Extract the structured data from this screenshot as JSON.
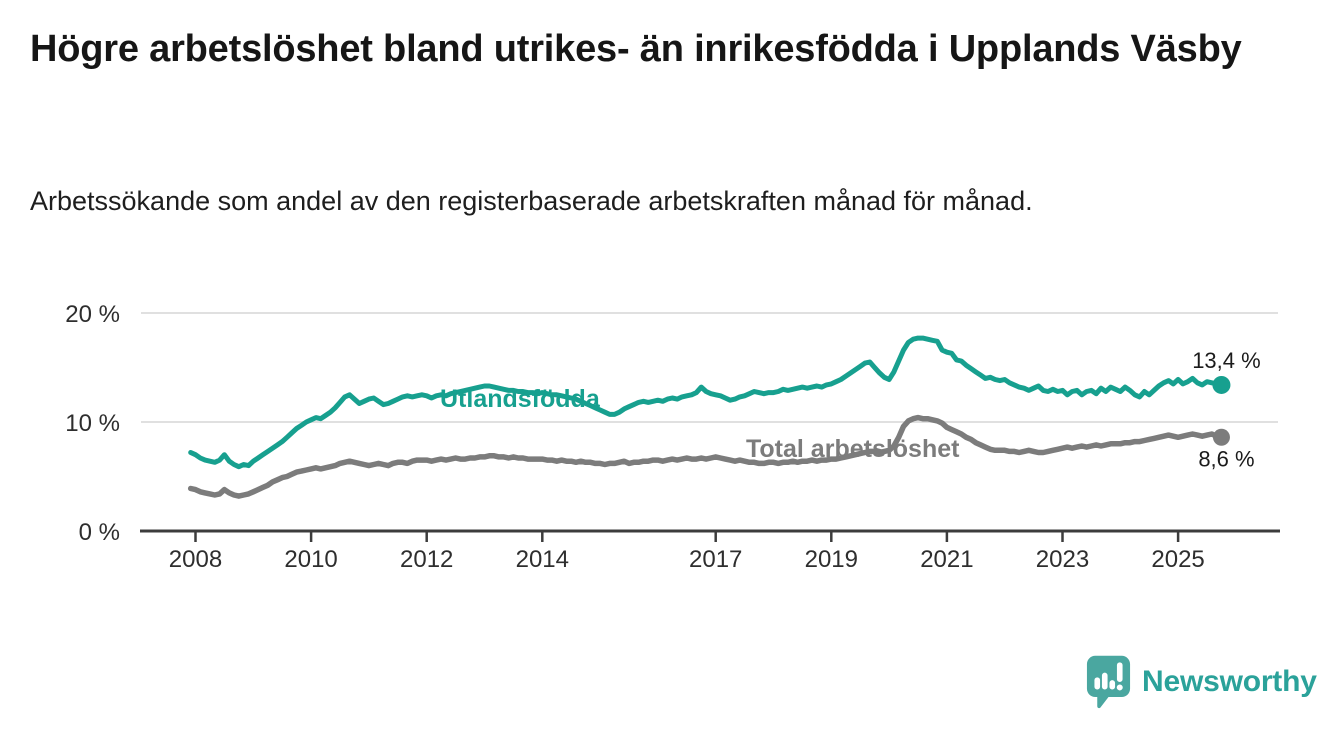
{
  "page": {
    "title": "Högre arbetslöshet bland utrikes- än inrikesfödda i Upplands Väsby",
    "subtitle": "Arbetssökande som andel av den registerbaserade arbetskraften månad för månad.",
    "background_color": "#ffffff"
  },
  "footer": {
    "brand": "Newsworthy",
    "brand_color": "#2ba29a",
    "logo_icon": "bar-chart-speech-bubble-icon",
    "logo_bubble_color": "#4aa7a0"
  },
  "chart_data": {
    "type": "line",
    "frequency": "monthly",
    "start": "2007-12",
    "end": "2025-10",
    "grid_on": true,
    "grid_color": "#dcdcdc",
    "axis_color": "#3c3c3c",
    "tick_text_color": "#2e2e2e",
    "value_label_color": "#1b1b1b",
    "x_axis": {
      "tick_labels": [
        "2008",
        "2010",
        "2012",
        "2014",
        "2017",
        "2019",
        "2021",
        "2023",
        "2025"
      ],
      "tick_years": [
        2008,
        2010,
        2012,
        2014,
        2017,
        2019,
        2021,
        2023,
        2025
      ]
    },
    "y_axis": {
      "tick_labels": [
        "0 %",
        "10 %",
        "20 %"
      ],
      "tick_values": [
        0,
        10,
        20
      ],
      "ylim": [
        0,
        21.5
      ]
    },
    "series": [
      {
        "name": "Utlandsfödda",
        "id": "utlandsfodda",
        "color": "#17a08f",
        "end_label": "13,4 %",
        "end_value": 13.4,
        "values": [
          7.2,
          7.0,
          6.7,
          6.5,
          6.4,
          6.3,
          6.5,
          7.0,
          6.4,
          6.1,
          5.9,
          6.1,
          6.0,
          6.4,
          6.7,
          7.0,
          7.3,
          7.6,
          7.9,
          8.2,
          8.6,
          9.0,
          9.4,
          9.7,
          10.0,
          10.2,
          10.4,
          10.3,
          10.6,
          10.9,
          11.3,
          11.8,
          12.3,
          12.5,
          12.1,
          11.7,
          11.9,
          12.1,
          12.2,
          11.9,
          11.6,
          11.7,
          11.9,
          12.1,
          12.3,
          12.4,
          12.3,
          12.4,
          12.5,
          12.4,
          12.2,
          12.4,
          12.5,
          12.4,
          12.6,
          12.7,
          12.8,
          12.9,
          13.0,
          13.1,
          13.2,
          13.3,
          13.3,
          13.2,
          13.1,
          13.0,
          12.9,
          12.9,
          12.8,
          12.8,
          12.7,
          12.7,
          12.6,
          12.7,
          12.6,
          12.5,
          12.5,
          12.4,
          12.3,
          12.2,
          12.1,
          11.9,
          11.7,
          11.5,
          11.3,
          11.1,
          10.9,
          10.7,
          10.7,
          10.9,
          11.2,
          11.4,
          11.6,
          11.8,
          11.9,
          11.8,
          11.9,
          12.0,
          11.9,
          12.1,
          12.2,
          12.1,
          12.3,
          12.4,
          12.5,
          12.7,
          13.2,
          12.8,
          12.6,
          12.5,
          12.4,
          12.2,
          12.0,
          12.1,
          12.3,
          12.4,
          12.6,
          12.8,
          12.7,
          12.6,
          12.7,
          12.7,
          12.8,
          13.0,
          12.9,
          13.0,
          13.1,
          13.2,
          13.1,
          13.2,
          13.3,
          13.2,
          13.4,
          13.5,
          13.7,
          13.9,
          14.2,
          14.5,
          14.8,
          15.1,
          15.4,
          15.5,
          15.0,
          14.5,
          14.1,
          13.9,
          14.6,
          15.6,
          16.6,
          17.3,
          17.6,
          17.7,
          17.7,
          17.6,
          17.5,
          17.4,
          16.6,
          16.4,
          16.3,
          15.7,
          15.6,
          15.2,
          14.9,
          14.6,
          14.3,
          14.0,
          14.1,
          13.9,
          13.8,
          13.9,
          13.6,
          13.4,
          13.2,
          13.1,
          12.9,
          13.1,
          13.3,
          12.9,
          12.8,
          13.0,
          12.8,
          12.9,
          12.5,
          12.8,
          12.9,
          12.5,
          12.8,
          12.9,
          12.6,
          13.1,
          12.8,
          13.2,
          13.0,
          12.8,
          13.2,
          12.9,
          12.5,
          12.3,
          12.8,
          12.5,
          12.9,
          13.3,
          13.6,
          13.8,
          13.5,
          13.9,
          13.5,
          13.7,
          14.0,
          13.6,
          13.4,
          13.7,
          13.6,
          13.5,
          13.4
        ]
      },
      {
        "name": "Total arbetslöshet",
        "id": "total-arbetsloshet",
        "color": "#7c7c7c",
        "end_label": "8,6 %",
        "end_value": 8.6,
        "values": [
          3.9,
          3.8,
          3.6,
          3.5,
          3.4,
          3.3,
          3.4,
          3.8,
          3.5,
          3.3,
          3.2,
          3.3,
          3.4,
          3.6,
          3.8,
          4.0,
          4.2,
          4.5,
          4.7,
          4.9,
          5.0,
          5.2,
          5.4,
          5.5,
          5.6,
          5.7,
          5.8,
          5.7,
          5.8,
          5.9,
          6.0,
          6.2,
          6.3,
          6.4,
          6.3,
          6.2,
          6.1,
          6.0,
          6.1,
          6.2,
          6.1,
          6.0,
          6.2,
          6.3,
          6.3,
          6.2,
          6.4,
          6.5,
          6.5,
          6.5,
          6.4,
          6.5,
          6.6,
          6.5,
          6.6,
          6.7,
          6.6,
          6.6,
          6.7,
          6.7,
          6.8,
          6.8,
          6.9,
          6.9,
          6.8,
          6.8,
          6.7,
          6.8,
          6.7,
          6.7,
          6.6,
          6.6,
          6.6,
          6.6,
          6.5,
          6.5,
          6.4,
          6.5,
          6.4,
          6.4,
          6.3,
          6.4,
          6.3,
          6.3,
          6.2,
          6.2,
          6.1,
          6.2,
          6.2,
          6.3,
          6.4,
          6.2,
          6.3,
          6.3,
          6.4,
          6.4,
          6.5,
          6.5,
          6.4,
          6.5,
          6.6,
          6.5,
          6.6,
          6.7,
          6.6,
          6.6,
          6.7,
          6.6,
          6.7,
          6.8,
          6.7,
          6.6,
          6.5,
          6.4,
          6.5,
          6.4,
          6.3,
          6.3,
          6.2,
          6.2,
          6.3,
          6.3,
          6.2,
          6.3,
          6.3,
          6.4,
          6.3,
          6.4,
          6.4,
          6.5,
          6.4,
          6.5,
          6.5,
          6.6,
          6.6,
          6.7,
          6.8,
          6.9,
          7.0,
          7.1,
          7.2,
          7.3,
          7.3,
          7.2,
          7.3,
          7.4,
          7.8,
          8.6,
          9.6,
          10.1,
          10.3,
          10.4,
          10.3,
          10.3,
          10.2,
          10.1,
          9.9,
          9.5,
          9.3,
          9.1,
          8.9,
          8.6,
          8.4,
          8.1,
          7.9,
          7.7,
          7.5,
          7.4,
          7.4,
          7.4,
          7.3,
          7.3,
          7.2,
          7.3,
          7.4,
          7.3,
          7.2,
          7.2,
          7.3,
          7.4,
          7.5,
          7.6,
          7.7,
          7.6,
          7.7,
          7.8,
          7.7,
          7.8,
          7.9,
          7.8,
          7.9,
          8.0,
          8.0,
          8.0,
          8.1,
          8.1,
          8.2,
          8.2,
          8.3,
          8.4,
          8.5,
          8.6,
          8.7,
          8.8,
          8.7,
          8.6,
          8.7,
          8.8,
          8.9,
          8.8,
          8.7,
          8.8,
          8.9,
          8.7,
          8.6
        ]
      }
    ]
  }
}
